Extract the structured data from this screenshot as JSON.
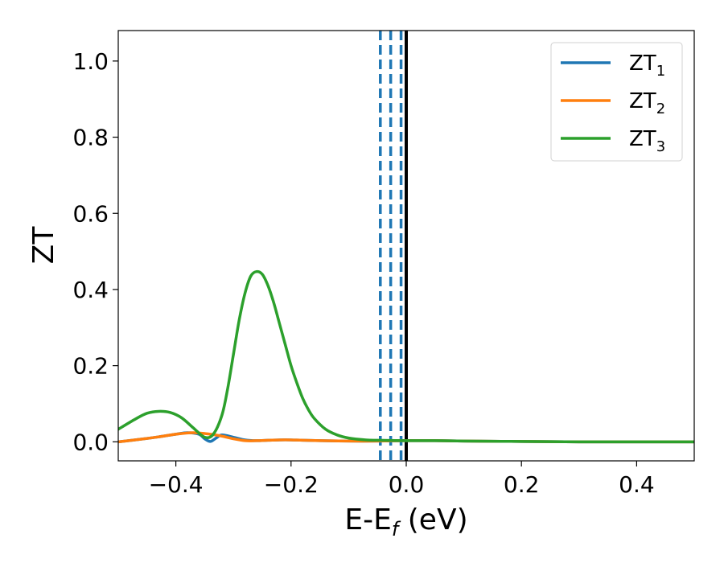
{
  "chart_data": {
    "type": "line",
    "title": "",
    "xlabel": {
      "main": "E-E",
      "sub": "f",
      "suffix": " (eV)"
    },
    "ylabel": "ZT",
    "xlim": [
      -0.5,
      0.5
    ],
    "ylim": [
      -0.05,
      1.08
    ],
    "xticks": [
      {
        "v": -0.4,
        "label": "−0.4"
      },
      {
        "v": -0.2,
        "label": "−0.2"
      },
      {
        "v": 0.0,
        "label": "0.0"
      },
      {
        "v": 0.2,
        "label": "0.2"
      },
      {
        "v": 0.4,
        "label": "0.4"
      }
    ],
    "yticks": [
      {
        "v": 0.0,
        "label": "0.0"
      },
      {
        "v": 0.2,
        "label": "0.2"
      },
      {
        "v": 0.4,
        "label": "0.4"
      },
      {
        "v": 0.6,
        "label": "0.6"
      },
      {
        "v": 0.8,
        "label": "0.8"
      },
      {
        "v": 1.0,
        "label": "1.0"
      }
    ],
    "grid": false,
    "legend_position": "top-right",
    "vlines": [
      {
        "x": -0.045,
        "style": "dashed",
        "color": "#1f77b4"
      },
      {
        "x": -0.027,
        "style": "dashed",
        "color": "#1f77b4"
      },
      {
        "x": -0.009,
        "style": "dashed",
        "color": "#1f77b4"
      },
      {
        "x": 0.0,
        "style": "solid",
        "color": "#000000"
      }
    ],
    "series": [
      {
        "name": "ZT",
        "sub": "1",
        "color": "#1f77b4",
        "x": [
          -0.5,
          -0.46,
          -0.43,
          -0.4,
          -0.38,
          -0.36,
          -0.35,
          -0.34,
          -0.33,
          -0.32,
          -0.3,
          -0.28,
          -0.26,
          -0.24,
          -0.22,
          -0.2,
          -0.18,
          -0.15,
          -0.1,
          -0.05,
          0.0,
          0.05,
          0.1,
          0.2,
          0.3,
          0.4,
          0.5
        ],
        "y": [
          0.0,
          0.007,
          0.013,
          0.02,
          0.024,
          0.02,
          0.008,
          0.001,
          0.01,
          0.018,
          0.012,
          0.005,
          0.003,
          0.004,
          0.005,
          0.005,
          0.004,
          0.003,
          0.002,
          0.002,
          0.003,
          0.003,
          0.002,
          0.001,
          0.0,
          0.0,
          0.0
        ]
      },
      {
        "name": "ZT",
        "sub": "2",
        "color": "#ff7f0e",
        "x": [
          -0.5,
          -0.46,
          -0.43,
          -0.4,
          -0.37,
          -0.34,
          -0.32,
          -0.3,
          -0.28,
          -0.26,
          -0.24,
          -0.22,
          -0.2,
          -0.18,
          -0.15,
          -0.1,
          -0.05,
          0.0,
          0.05,
          0.1,
          0.2,
          0.3,
          0.4,
          0.5
        ],
        "y": [
          0.0,
          0.007,
          0.013,
          0.02,
          0.024,
          0.02,
          0.015,
          0.008,
          0.003,
          0.003,
          0.004,
          0.005,
          0.005,
          0.004,
          0.003,
          0.002,
          0.002,
          0.003,
          0.003,
          0.002,
          0.001,
          0.0,
          0.0,
          0.0
        ]
      },
      {
        "name": "ZT",
        "sub": "3",
        "color": "#2ca02c",
        "x": [
          -0.5,
          -0.47,
          -0.45,
          -0.43,
          -0.41,
          -0.39,
          -0.37,
          -0.35,
          -0.335,
          -0.32,
          -0.31,
          -0.3,
          -0.29,
          -0.28,
          -0.27,
          -0.26,
          -0.25,
          -0.24,
          -0.23,
          -0.22,
          -0.21,
          -0.2,
          -0.19,
          -0.18,
          -0.17,
          -0.16,
          -0.14,
          -0.12,
          -0.1,
          -0.07,
          -0.05,
          0.0,
          0.05,
          0.1,
          0.2,
          0.3,
          0.4,
          0.5
        ],
        "y": [
          0.033,
          0.06,
          0.075,
          0.08,
          0.077,
          0.063,
          0.037,
          0.012,
          0.02,
          0.07,
          0.14,
          0.23,
          0.32,
          0.39,
          0.435,
          0.447,
          0.44,
          0.41,
          0.365,
          0.31,
          0.255,
          0.2,
          0.155,
          0.115,
          0.085,
          0.062,
          0.033,
          0.018,
          0.01,
          0.005,
          0.004,
          0.003,
          0.003,
          0.002,
          0.001,
          0.0,
          0.0,
          0.0
        ]
      }
    ]
  }
}
